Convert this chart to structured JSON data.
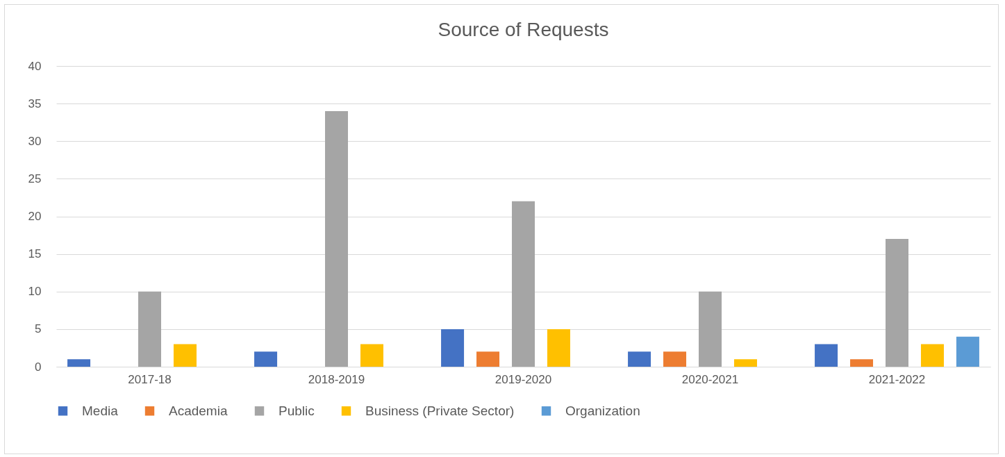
{
  "chart_data": {
    "type": "bar",
    "title": "Source of Requests",
    "categories": [
      "2017-18",
      "2018-2019",
      "2019-2020",
      "2020-2021",
      "2021-2022"
    ],
    "series": [
      {
        "name": "Media",
        "color": "#4472c4",
        "values": [
          1,
          2,
          5,
          2,
          3
        ]
      },
      {
        "name": "Academia",
        "color": "#ed7d31",
        "values": [
          0,
          0,
          2,
          2,
          1
        ]
      },
      {
        "name": "Public",
        "color": "#a5a5a5",
        "values": [
          10,
          34,
          22,
          10,
          17
        ]
      },
      {
        "name": "Business (Private Sector)",
        "color": "#ffc000",
        "values": [
          3,
          3,
          5,
          1,
          3
        ]
      },
      {
        "name": "Organization",
        "color": "#5b9bd5",
        "values": [
          0,
          0,
          0,
          0,
          4
        ]
      }
    ],
    "ylim": [
      0,
      40
    ],
    "yticks": [
      0,
      5,
      10,
      15,
      20,
      25,
      30,
      35,
      40
    ],
    "grid": "y",
    "legend": "bottom"
  }
}
